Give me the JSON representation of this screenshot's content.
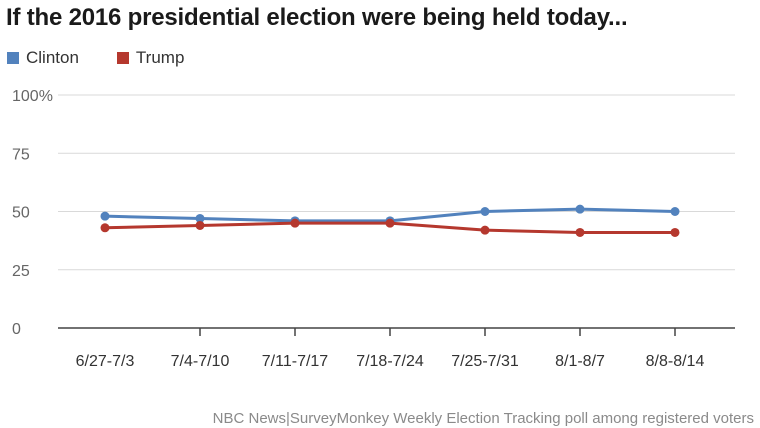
{
  "chart_data": {
    "type": "line",
    "title": "If the 2016 presidential election were being held today...",
    "categories": [
      "6/27-7/3",
      "7/4-7/10",
      "7/11-7/17",
      "7/18-7/24",
      "7/25-7/31",
      "8/1-8/7",
      "8/8-8/14"
    ],
    "series": [
      {
        "name": "Clinton",
        "color": "#5282bd",
        "values": [
          48,
          47,
          46,
          46,
          50,
          51,
          50
        ]
      },
      {
        "name": "Trump",
        "color": "#b5382e",
        "values": [
          43,
          44,
          45,
          45,
          42,
          41,
          41
        ]
      }
    ],
    "y_ticks": [
      "0",
      "25",
      "50",
      "75",
      "100%"
    ],
    "ylim": [
      0,
      100
    ],
    "grid": true,
    "legend": "top-left",
    "source": "NBC News|SurveyMonkey Weekly Election Tracking poll among registered voters"
  }
}
